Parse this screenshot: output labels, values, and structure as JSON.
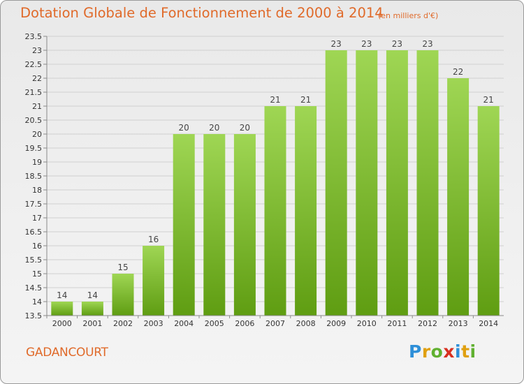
{
  "chart_data": {
    "type": "bar",
    "title": "Dotation Globale de Fonctionnement de 2000 à 2014",
    "subtitle": "(en milliers d'€)",
    "categories": [
      "2000",
      "2001",
      "2002",
      "2003",
      "2004",
      "2005",
      "2006",
      "2007",
      "2008",
      "2009",
      "2010",
      "2011",
      "2012",
      "2013",
      "2014"
    ],
    "values": [
      14,
      14,
      15,
      16,
      20,
      20,
      20,
      21,
      21,
      23,
      23,
      23,
      23,
      22,
      21
    ],
    "value_labels": [
      "14",
      "14",
      "15",
      "16",
      "20",
      "20",
      "20",
      "21",
      "21",
      "23",
      "23",
      "23",
      "23",
      "22",
      "21"
    ],
    "xlabel": "",
    "ylabel": "",
    "ylim": [
      13.5,
      23.5
    ],
    "yticks": [
      13.5,
      14,
      14.5,
      15,
      15.5,
      16,
      16.5,
      17,
      17.5,
      18,
      18.5,
      19,
      19.5,
      20,
      20.5,
      21,
      21.5,
      22,
      22.5,
      23,
      23.5
    ],
    "ytick_labels": [
      "13.5",
      "14",
      "14.5",
      "15",
      "15.5",
      "16",
      "16.5",
      "17",
      "17.5",
      "18",
      "18.5",
      "19",
      "19.5",
      "20",
      "20.5",
      "21",
      "21.5",
      "22",
      "22.5",
      "23",
      "23.5"
    ],
    "grid": true,
    "colors": {
      "bar_top": "#9fd654",
      "bar_bottom": "#5f9d12",
      "grid": "#d0d0d0",
      "axis": "#8a8a8a",
      "title": "#e06a2a"
    }
  },
  "footer": {
    "commune": "GADANCOURT",
    "logo_letters": [
      {
        "char": "P",
        "color": "#2e8fd8"
      },
      {
        "char": "r",
        "color": "#e0a010"
      },
      {
        "char": "o",
        "color": "#60b030"
      },
      {
        "char": "x",
        "color": "#d83020"
      },
      {
        "char": "i",
        "color": "#2e8fd8"
      },
      {
        "char": "t",
        "color": "#e0a010"
      },
      {
        "char": "i",
        "color": "#60b030"
      }
    ]
  }
}
